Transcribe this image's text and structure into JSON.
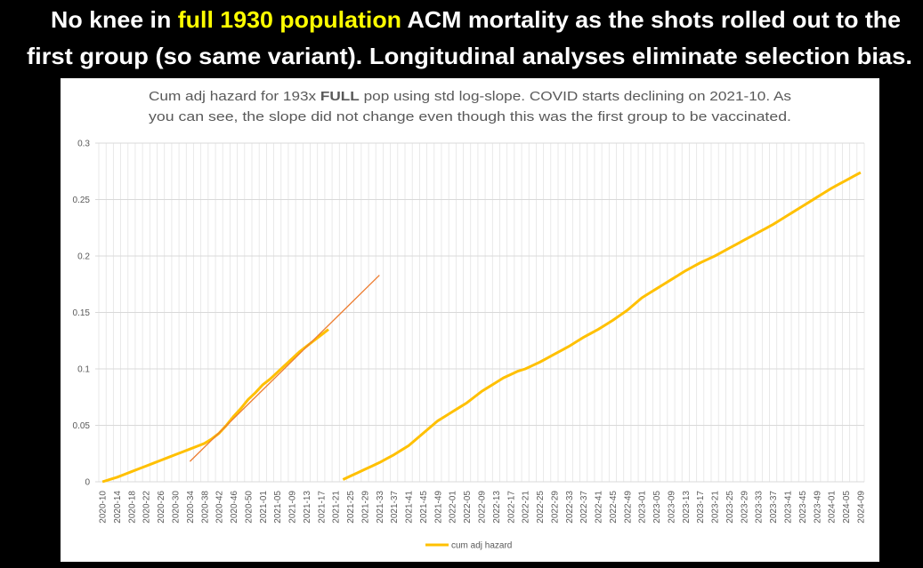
{
  "header": {
    "line1": [
      "No knee in ",
      "full 1930 population",
      " ACM mortality as the shots rolled out to the"
    ],
    "line2": "first group (so same variant). Longitudinal analyses eliminate selection bias."
  },
  "chart_data": {
    "type": "line",
    "title": {
      "line1": [
        "Cum adj hazard for 193x ",
        "FULL",
        " pop using std log-slope. COVID starts declining on 2021-10. As"
      ],
      "line2": "you can see, the slope did not change even though this was the first group to be vaccinated."
    },
    "categories": [
      "2020-10",
      null,
      "2020-14",
      null,
      "2020-18",
      null,
      "2020-22",
      null,
      "2020-26",
      null,
      "2020-30",
      null,
      "2020-34",
      null,
      "2020-38",
      null,
      "2020-42",
      null,
      "2020-46",
      null,
      "2020-50",
      null,
      "2021-01",
      null,
      "2021-05",
      null,
      "2021-09",
      null,
      "2021-13",
      null,
      "2021-17",
      null,
      "2021-21",
      null,
      "2021-25",
      null,
      "2021-29",
      null,
      "2021-33",
      null,
      "2021-37",
      null,
      "2021-41",
      null,
      "2021-45",
      null,
      "2021-49",
      null,
      "2022-01",
      null,
      "2022-05",
      null,
      "2022-09",
      null,
      "2022-13",
      null,
      "2022-17",
      null,
      "2022-21",
      null,
      "2022-25",
      null,
      "2022-29",
      null,
      "2022-33",
      null,
      "2022-37",
      null,
      "2022-41",
      null,
      "2022-45",
      null,
      "2022-49",
      null,
      "2023-01",
      null,
      "2023-05",
      null,
      "2023-09",
      null,
      "2023-13",
      null,
      "2023-17",
      null,
      "2023-21",
      null,
      "2023-25",
      null,
      "2023-29",
      null,
      "2023-33",
      null,
      "2023-37",
      null,
      "2023-41",
      null,
      "2023-45",
      null,
      "2023-49",
      null,
      "2024-01",
      null,
      "2024-05",
      null,
      "2024-09"
    ],
    "series": [
      {
        "name": "cum adj hazard",
        "color": "#ffc000",
        "values": [
          0,
          0.002,
          0.004,
          0.0065,
          0.009,
          0.0115,
          0.014,
          0.0165,
          0.019,
          0.0215,
          0.024,
          0.0265,
          0.029,
          0.0315,
          0.034,
          0.038,
          0.043,
          0.05,
          0.058,
          0.065,
          0.073,
          0.079,
          0.086,
          0.091,
          0.097,
          0.103,
          0.109,
          0.115,
          0.12,
          0.125,
          0.13,
          0.135,
          null,
          0.002,
          0.005,
          0.008,
          0.011,
          0.014,
          0.017,
          0.0205,
          0.024,
          0.028,
          0.032,
          0.0375,
          0.043,
          0.0485,
          0.054,
          0.058,
          0.062,
          0.066,
          0.07,
          0.075,
          0.08,
          0.084,
          0.088,
          0.092,
          0.095,
          0.098,
          0.1,
          0.103,
          0.106,
          0.1095,
          0.113,
          0.1165,
          0.12,
          0.124,
          0.128,
          0.1315,
          0.135,
          0.139,
          0.143,
          0.1475,
          0.152,
          0.1575,
          0.163,
          0.167,
          0.171,
          0.175,
          0.179,
          0.183,
          0.187,
          0.1905,
          0.194,
          0.197,
          0.2,
          0.2035,
          0.207,
          0.2105,
          0.214,
          0.2175,
          0.221,
          0.2245,
          0.228,
          0.232,
          0.236,
          0.24,
          0.244,
          0.248,
          0.252,
          0.256,
          0.26,
          0.2635,
          0.267,
          0.2705,
          0.274
        ]
      }
    ],
    "trendline": {
      "color": "#ed7d31",
      "from": {
        "category": "2020-34",
        "value": 0.018
      },
      "to": {
        "category": "2021-33",
        "value": 0.183
      }
    },
    "ylim": [
      0,
      0.3
    ],
    "yticks": [
      0,
      0.05,
      0.1,
      0.15,
      0.2,
      0.25,
      0.3
    ],
    "grid": true,
    "legend": "bottom"
  }
}
